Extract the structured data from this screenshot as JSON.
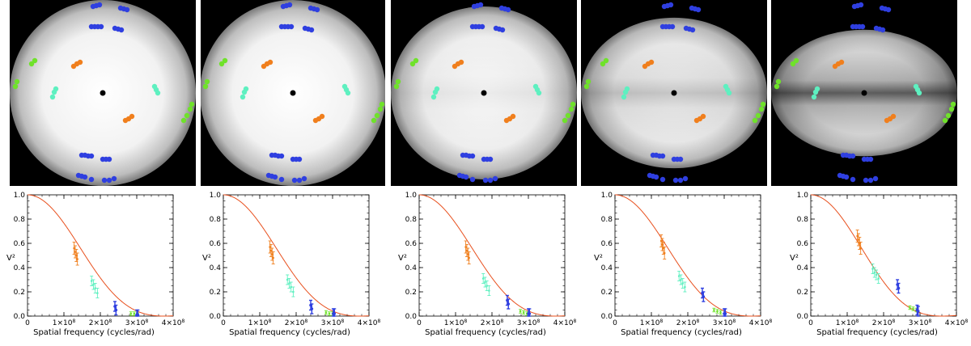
{
  "colors": {
    "orange": "#f07f1d",
    "cyan": "#5ef0c0",
    "green": "#6fe22a",
    "blue": "#2f3fe0",
    "model_line": "#e8501e",
    "center": "#000000"
  },
  "chart_data": [
    {
      "type": "scatter",
      "panel": "visibility-curve",
      "xlabel": "Spatial frequency (cycles/rad)",
      "ylabel": "V²",
      "xlim": [
        0,
        400000000
      ],
      "ylim": [
        0,
        1.0
      ],
      "x_tick_labels": [
        "0",
        "1×10⁸",
        "2×10⁸",
        "3×10⁸",
        "4×10⁸"
      ],
      "y_tick_labels": [
        "0.0",
        "0.2",
        "0.4",
        "0.6",
        "0.8",
        "1.0"
      ],
      "model_curve_first_null": 375000000,
      "series": [
        {
          "color": "orange",
          "x": [
            128000000,
            131000000,
            134000000,
            137000000
          ],
          "y": [
            0.56,
            0.53,
            0.5,
            0.47
          ],
          "err": 0.05
        },
        {
          "color": "cyan",
          "x": [
            176000000,
            181000000,
            186000000,
            192000000
          ],
          "y": [
            0.29,
            0.26,
            0.23,
            0.19
          ],
          "err": 0.04
        },
        {
          "color": "green",
          "x": [
            284000000,
            293000000,
            302000000
          ],
          "y": [
            0.02,
            0.02,
            0.01
          ],
          "err": 0.015
        },
        {
          "color": "blue",
          "x": [
            240000000,
            243000000,
            300000000,
            303000000
          ],
          "y": [
            0.08,
            0.05,
            0.01,
            0.01
          ],
          "err": 0.04
        }
      ]
    },
    {
      "type": "scatter",
      "panel": "visibility-curve",
      "xlabel": "Spatial frequency (cycles/rad)",
      "ylabel": "V²",
      "xlim": [
        0,
        400000000
      ],
      "ylim": [
        0,
        1.0
      ],
      "x_tick_labels": [
        "0",
        "1×10⁸",
        "2×10⁸",
        "3×10⁸",
        "4×10⁸"
      ],
      "y_tick_labels": [
        "0.0",
        "0.2",
        "0.4",
        "0.6",
        "0.8",
        "1.0"
      ],
      "model_curve_first_null": 375000000,
      "series": [
        {
          "color": "orange",
          "x": [
            128000000,
            131000000,
            134000000,
            137000000
          ],
          "y": [
            0.57,
            0.54,
            0.51,
            0.48
          ],
          "err": 0.05
        },
        {
          "color": "cyan",
          "x": [
            176000000,
            181000000,
            186000000,
            192000000
          ],
          "y": [
            0.3,
            0.27,
            0.24,
            0.2
          ],
          "err": 0.04
        },
        {
          "color": "green",
          "x": [
            282000000,
            291000000,
            300000000
          ],
          "y": [
            0.03,
            0.02,
            0.02
          ],
          "err": 0.015
        },
        {
          "color": "blue",
          "x": [
            240000000,
            243000000,
            302000000,
            305000000
          ],
          "y": [
            0.09,
            0.06,
            0.02,
            0.02
          ],
          "err": 0.04
        }
      ]
    },
    {
      "type": "scatter",
      "panel": "visibility-curve",
      "xlabel": "Spatial frequency (cycles/rad)",
      "ylabel": "V²",
      "xlim": [
        0,
        400000000
      ],
      "ylim": [
        0,
        1.0
      ],
      "x_tick_labels": [
        "0",
        "1×10⁸",
        "2×10⁸",
        "3×10⁸",
        "4×10⁸"
      ],
      "y_tick_labels": [
        "0.0",
        "0.2",
        "0.4",
        "0.6",
        "0.8",
        "1.0"
      ],
      "model_curve_first_null": 375000000,
      "series": [
        {
          "color": "orange",
          "x": [
            128000000,
            131000000,
            134000000,
            137000000
          ],
          "y": [
            0.57,
            0.54,
            0.51,
            0.48
          ],
          "err": 0.05
        },
        {
          "color": "cyan",
          "x": [
            176000000,
            181000000,
            186000000,
            192000000
          ],
          "y": [
            0.31,
            0.28,
            0.25,
            0.21
          ],
          "err": 0.04
        },
        {
          "color": "green",
          "x": [
            278000000,
            287000000,
            296000000
          ],
          "y": [
            0.04,
            0.03,
            0.02
          ],
          "err": 0.015
        },
        {
          "color": "blue",
          "x": [
            242000000,
            245000000,
            300000000,
            303000000
          ],
          "y": [
            0.13,
            0.1,
            0.02,
            0.02
          ],
          "err": 0.04
        }
      ]
    },
    {
      "type": "scatter",
      "panel": "visibility-curve",
      "xlabel": "Spatial frequency (cycles/rad)",
      "ylabel": "V²",
      "xlim": [
        0,
        400000000
      ],
      "ylim": [
        0,
        1.0
      ],
      "x_tick_labels": [
        "0",
        "1×10⁸",
        "2×10⁸",
        "3×10⁸",
        "4×10⁸"
      ],
      "y_tick_labels": [
        "0.0",
        "0.2",
        "0.4",
        "0.6",
        "0.8",
        "1.0"
      ],
      "model_curve_first_null": 375000000,
      "series": [
        {
          "color": "orange",
          "x": [
            127000000,
            130000000,
            133000000,
            136000000
          ],
          "y": [
            0.62,
            0.59,
            0.56,
            0.52
          ],
          "err": 0.05
        },
        {
          "color": "cyan",
          "x": [
            176000000,
            181000000,
            186000000,
            192000000
          ],
          "y": [
            0.33,
            0.3,
            0.27,
            0.24
          ],
          "err": 0.04
        },
        {
          "color": "green",
          "x": [
            272000000,
            281000000,
            290000000
          ],
          "y": [
            0.05,
            0.04,
            0.03
          ],
          "err": 0.015
        },
        {
          "color": "blue",
          "x": [
            240000000,
            243000000,
            300000000,
            303000000
          ],
          "y": [
            0.19,
            0.16,
            0.02,
            0.02
          ],
          "err": 0.04
        }
      ]
    },
    {
      "type": "scatter",
      "panel": "visibility-curve",
      "xlabel": "Spatial frequency (cycles/rad)",
      "ylabel": "V²",
      "xlim": [
        0,
        400000000
      ],
      "ylim": [
        0,
        1.0
      ],
      "x_tick_labels": [
        "0",
        "1×10⁸",
        "2×10⁸",
        "3×10⁸",
        "4×10⁸"
      ],
      "y_tick_labels": [
        "0.0",
        "0.2",
        "0.4",
        "0.6",
        "0.8",
        "1.0"
      ],
      "model_curve_first_null": 360000000,
      "series": [
        {
          "color": "orange",
          "x": [
            128000000,
            131000000,
            134000000,
            137000000
          ],
          "y": [
            0.66,
            0.63,
            0.6,
            0.56
          ],
          "err": 0.05
        },
        {
          "color": "cyan",
          "x": [
            170000000,
            175000000,
            180000000,
            186000000
          ],
          "y": [
            0.39,
            0.36,
            0.34,
            0.31
          ],
          "err": 0.04
        },
        {
          "color": "green",
          "x": [
            272000000,
            281000000,
            290000000
          ],
          "y": [
            0.07,
            0.06,
            0.05
          ],
          "err": 0.015
        },
        {
          "color": "blue",
          "x": [
            238000000,
            241000000,
            292000000,
            295000000
          ],
          "y": [
            0.26,
            0.23,
            0.05,
            0.04
          ],
          "err": 0.04
        }
      ]
    }
  ],
  "uv_maps": [
    {
      "ry_ratio": 1.0,
      "dark_band": 0.0
    },
    {
      "ry_ratio": 1.0,
      "dark_band": 0.0
    },
    {
      "ry_ratio": 0.93,
      "dark_band": 0.1
    },
    {
      "ry_ratio": 0.81,
      "dark_band": 0.3
    },
    {
      "ry_ratio": 0.68,
      "dark_band": 0.85
    }
  ]
}
